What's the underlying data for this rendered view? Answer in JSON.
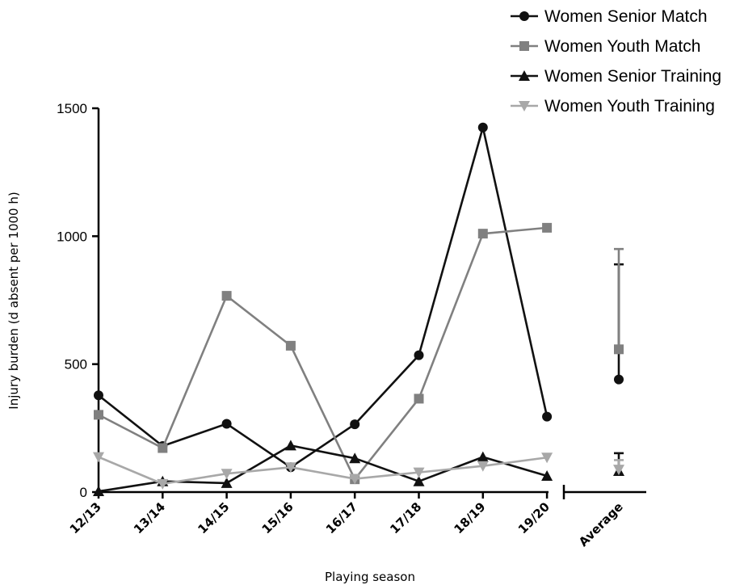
{
  "chart_data": {
    "type": "line",
    "title": "",
    "xlabel": "Playing season",
    "ylabel": "Injury burden (d absent per 1000 h)",
    "ylim": [
      0,
      1500
    ],
    "yticks": [
      "0",
      "500",
      "1000",
      "1500"
    ],
    "categories": [
      "12/13",
      "13/14",
      "14/15",
      "15/16",
      "16/17",
      "17/18",
      "18/19",
      "19/20"
    ],
    "average_label": "Average",
    "legend_position": "top-right",
    "grid": false,
    "series": [
      {
        "name": "Women Senior Match",
        "color": "#111111",
        "marker": "circle",
        "values": [
          378,
          180,
          267,
          97,
          265,
          535,
          1425,
          295
        ],
        "average": {
          "mean": 440,
          "lower": 440,
          "upper": 890
        }
      },
      {
        "name": "Women Youth Match",
        "color": "#808080",
        "marker": "square",
        "values": [
          302,
          172,
          767,
          572,
          50,
          365,
          1010,
          1033
        ],
        "average": {
          "mean": 558,
          "lower": 558,
          "upper": 950
        }
      },
      {
        "name": "Women Senior Training",
        "color": "#111111",
        "marker": "triangle-up",
        "values": [
          3,
          42,
          35,
          182,
          132,
          42,
          137,
          63
        ],
        "average": {
          "mean": 82,
          "lower": 82,
          "upper": 152
        }
      },
      {
        "name": "Women Youth Training",
        "color": "#a8a8a8",
        "marker": "triangle-down",
        "values": [
          137,
          32,
          72,
          97,
          52,
          77,
          102,
          135
        ],
        "average": {
          "mean": 88,
          "lower": 88,
          "upper": 125
        }
      }
    ]
  }
}
